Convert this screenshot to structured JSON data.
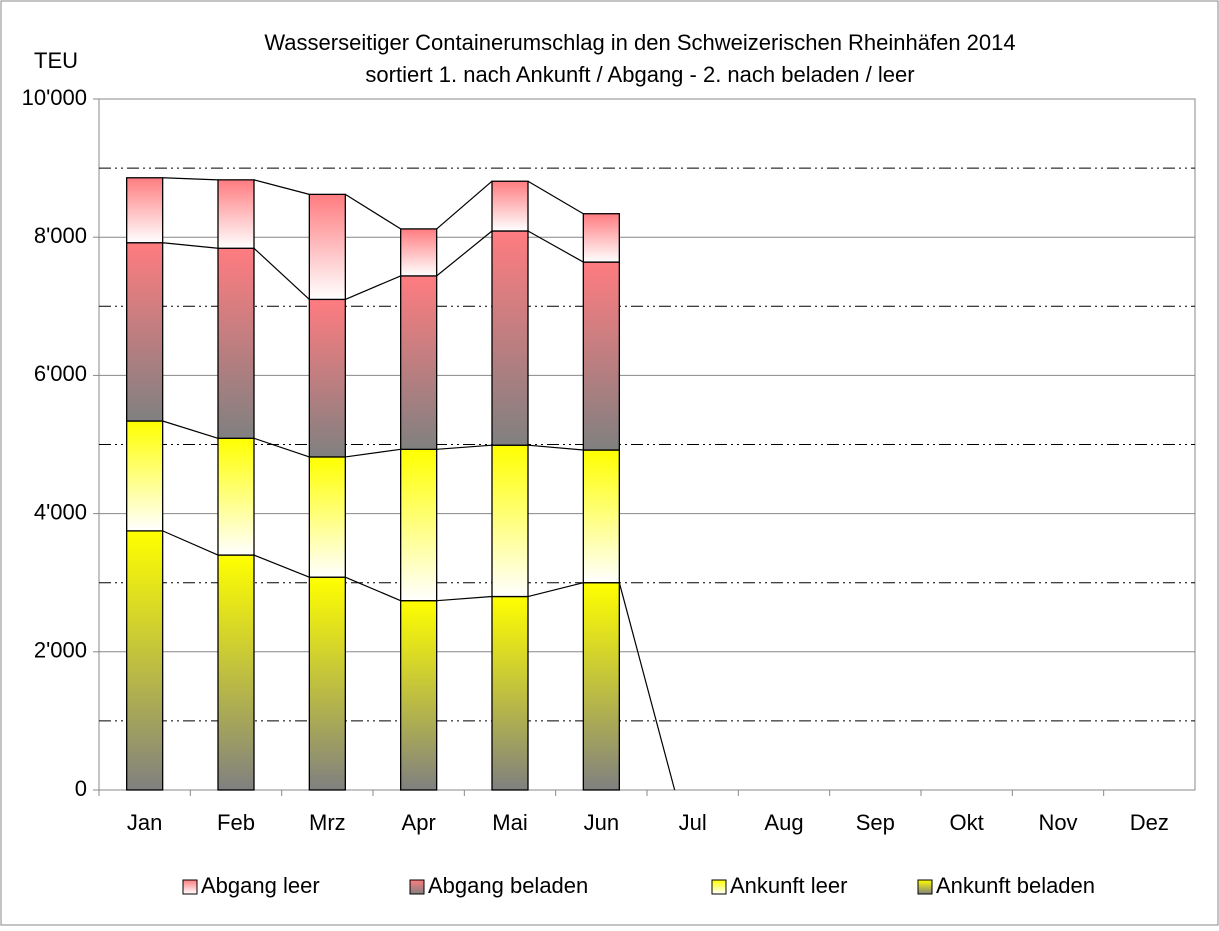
{
  "chart_data": {
    "type": "stacked_bar",
    "title": "Wasserseitiger Containerumschlag in den Schweizerischen Rheinhäfen 2014",
    "subtitle": "sortiert 1. nach Ankunft / Abgang - 2. nach beladen / leer",
    "y_label": "TEU",
    "categories": [
      "Jan",
      "Feb",
      "Mrz",
      "Apr",
      "Mai",
      "Jun",
      "Jul",
      "Aug",
      "Sep",
      "Okt",
      "Nov",
      "Dez"
    ],
    "series": [
      {
        "name": "Ankunft beladen",
        "color": "#ffff00",
        "color_bottom": "#808080",
        "values": [
          3750,
          3400,
          3080,
          2740,
          2800,
          3000,
          0,
          0,
          0,
          0,
          0,
          0
        ]
      },
      {
        "name": "Ankunft leer",
        "color": "#ffff00",
        "color_bottom": "#ffffff",
        "values": [
          1590,
          1690,
          1740,
          2190,
          2190,
          1920,
          null,
          null,
          null,
          null,
          null,
          null
        ]
      },
      {
        "name": "Abgang beladen",
        "color": "#ff7c80",
        "color_bottom": "#808080",
        "values": [
          2580,
          2750,
          2280,
          2510,
          3100,
          2720,
          null,
          null,
          null,
          null,
          null,
          null
        ]
      },
      {
        "name": "Abgang leer",
        "color": "#ff7c80",
        "color_bottom": "#ffffff",
        "values": [
          940,
          990,
          1520,
          680,
          720,
          700,
          null,
          null,
          null,
          null,
          null,
          null
        ]
      }
    ],
    "ylim": [
      0,
      10000
    ],
    "yticks": [
      {
        "value": 0,
        "label": "0"
      },
      {
        "value": 2000,
        "label": "2'000"
      },
      {
        "value": 4000,
        "label": "4'000"
      },
      {
        "value": 6000,
        "label": "6'000"
      },
      {
        "value": 8000,
        "label": "8'000"
      },
      {
        "value": 10000,
        "label": "10'000"
      }
    ],
    "minor_yticks": [
      1000,
      3000,
      5000,
      7000,
      9000
    ],
    "grid": true,
    "legend": "bottom"
  }
}
